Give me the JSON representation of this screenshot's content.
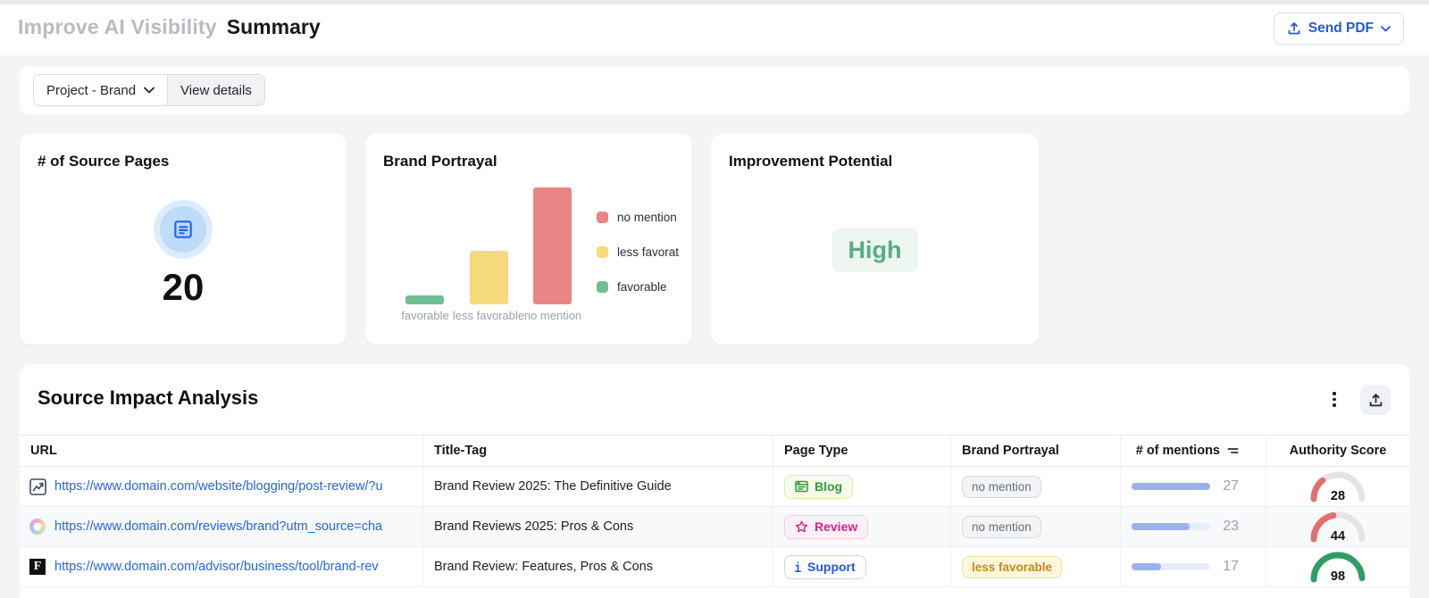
{
  "colors": {
    "accent_blue": "#2457e0",
    "link_blue": "#2563eb",
    "gauge_low": "#e36f6f",
    "gauge_high": "#2f9e64",
    "mention_bar": "#9bb0f2"
  },
  "header": {
    "muted_title": "Improve AI Visibility",
    "title": "Summary",
    "send_pdf_label": "Send PDF"
  },
  "toolbar": {
    "project_selector_label": "Project - Brand",
    "view_details_label": "View details"
  },
  "cards": {
    "source_pages": {
      "title": "# of Source Pages",
      "value": "20"
    },
    "brand_portrayal": {
      "title": "Brand Portrayal"
    },
    "improvement": {
      "title": "Improvement Potential",
      "value": "High"
    }
  },
  "chart_data": {
    "type": "bar",
    "title": "Brand Portrayal",
    "categories": [
      "favorable",
      "less favorable",
      "no mention"
    ],
    "values": [
      1,
      6,
      13
    ],
    "colors": [
      "#6fbe93",
      "#f6da7b",
      "#e88585"
    ],
    "ylim": [
      0,
      13
    ],
    "grid": false,
    "legend_position": "right",
    "legend": [
      {
        "label": "no mention",
        "color": "#e88585"
      },
      {
        "label": "less favorat",
        "color": "#f6da7b"
      },
      {
        "label": "favorable",
        "color": "#6fbe93"
      }
    ]
  },
  "table": {
    "title": "Source Impact Analysis",
    "columns": [
      "URL",
      "Title-Tag",
      "Page Type",
      "Brand Portrayal",
      "# of mentions",
      "Authority Score"
    ],
    "rows": [
      {
        "favicon": "line-chart-favicon",
        "url": "https://www.domain.com/website/blogging/post-review/?u",
        "title": "Brand Review 2025: The Definitive Guide",
        "page_type": "Blog",
        "portrayal": "no mention",
        "mentions": 27,
        "bar_pct": 100,
        "authority": 28,
        "authority_color": "#e36f6f"
      },
      {
        "favicon": "rainbow-swirl-favicon",
        "url": "https://www.domain.com/reviews/brand?utm_source=cha",
        "title": "Brand Reviews 2025: Pros & Cons",
        "page_type": "Review",
        "portrayal": "no mention",
        "mentions": 23,
        "bar_pct": 74,
        "authority": 44,
        "authority_color": "#e36f6f"
      },
      {
        "favicon": "letter-f-favicon",
        "url": "https://www.domain.com/advisor/business/tool/brand-rev",
        "title": "Brand Review: Features, Pros & Cons",
        "page_type": "Support",
        "portrayal": "less favorable",
        "mentions": 17,
        "bar_pct": 38,
        "authority": 98,
        "authority_color": "#2f9e64"
      }
    ]
  }
}
